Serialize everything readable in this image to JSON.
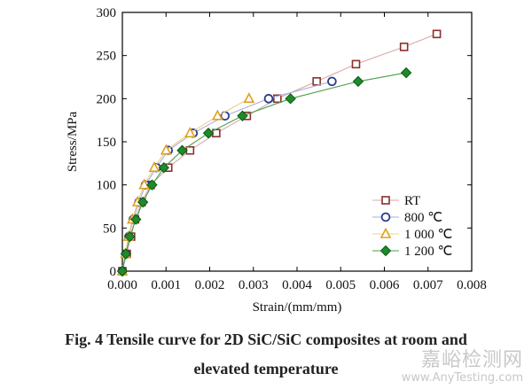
{
  "chart_data": {
    "type": "scatter",
    "xlabel": "Strain/(mm/mm)",
    "ylabel": "Stress/MPa",
    "xlim": [
      0,
      0.008
    ],
    "ylim": [
      0,
      300
    ],
    "x_ticks": [
      "0.000",
      "0.001",
      "0.002",
      "0.003",
      "0.004",
      "0.005",
      "0.006",
      "0.007",
      "0.008"
    ],
    "y_ticks": [
      "0",
      "50",
      "100",
      "150",
      "200",
      "250",
      "300"
    ],
    "legend_position": "bottom-right",
    "series": [
      {
        "name": "RT",
        "marker": "square",
        "color": "#8b2f2f",
        "line_color": "#d9a8a8",
        "points": [
          [
            0,
            0
          ],
          [
            0.0001,
            20
          ],
          [
            0.0002,
            40
          ],
          [
            0.00029,
            60
          ],
          [
            0.00044,
            80
          ],
          [
            0.00065,
            100
          ],
          [
            0.00105,
            120
          ],
          [
            0.00155,
            140
          ],
          [
            0.00215,
            160
          ],
          [
            0.00285,
            180
          ],
          [
            0.00355,
            200
          ],
          [
            0.00445,
            220
          ],
          [
            0.00535,
            240
          ],
          [
            0.00645,
            260
          ],
          [
            0.0072,
            275
          ]
        ]
      },
      {
        "name": "800 ℃",
        "marker": "circle",
        "color": "#2d3a8c",
        "line_color": "#a9b0d8",
        "points": [
          [
            0,
            0
          ],
          [
            8e-05,
            20
          ],
          [
            0.00015,
            40
          ],
          [
            0.00025,
            60
          ],
          [
            0.00038,
            80
          ],
          [
            0.00053,
            100
          ],
          [
            0.00078,
            120
          ],
          [
            0.00105,
            140
          ],
          [
            0.00162,
            160
          ],
          [
            0.00235,
            180
          ],
          [
            0.00335,
            200
          ],
          [
            0.0048,
            220
          ]
        ]
      },
      {
        "name": "1 000 ℃",
        "marker": "triangle",
        "color": "#e0a020",
        "line_color": "#f0cf8a",
        "points": [
          [
            0,
            0
          ],
          [
            7e-05,
            20
          ],
          [
            0.00014,
            40
          ],
          [
            0.00023,
            60
          ],
          [
            0.00035,
            80
          ],
          [
            0.0005,
            100
          ],
          [
            0.00073,
            120
          ],
          [
            0.001,
            140
          ],
          [
            0.00155,
            160
          ],
          [
            0.00218,
            180
          ],
          [
            0.0029,
            200
          ]
        ]
      },
      {
        "name": "1 200 ℃",
        "marker": "diamond",
        "color": "#1f8a2a",
        "line_color": "#4aa04a",
        "points": [
          [
            0,
            0
          ],
          [
            8e-05,
            20
          ],
          [
            0.00017,
            40
          ],
          [
            0.00031,
            60
          ],
          [
            0.00047,
            80
          ],
          [
            0.00068,
            100
          ],
          [
            0.00095,
            120
          ],
          [
            0.00137,
            140
          ],
          [
            0.00197,
            160
          ],
          [
            0.00275,
            180
          ],
          [
            0.00385,
            200
          ],
          [
            0.0054,
            220
          ],
          [
            0.0065,
            230
          ]
        ]
      }
    ]
  },
  "caption": {
    "line1": "Fig. 4    Tensile curve for 2D SiC/SiC composites at room and",
    "line2": "elevated temperature"
  },
  "watermark": {
    "chinese": "嘉峪检测网",
    "url": "www.AnyTesting.com"
  }
}
